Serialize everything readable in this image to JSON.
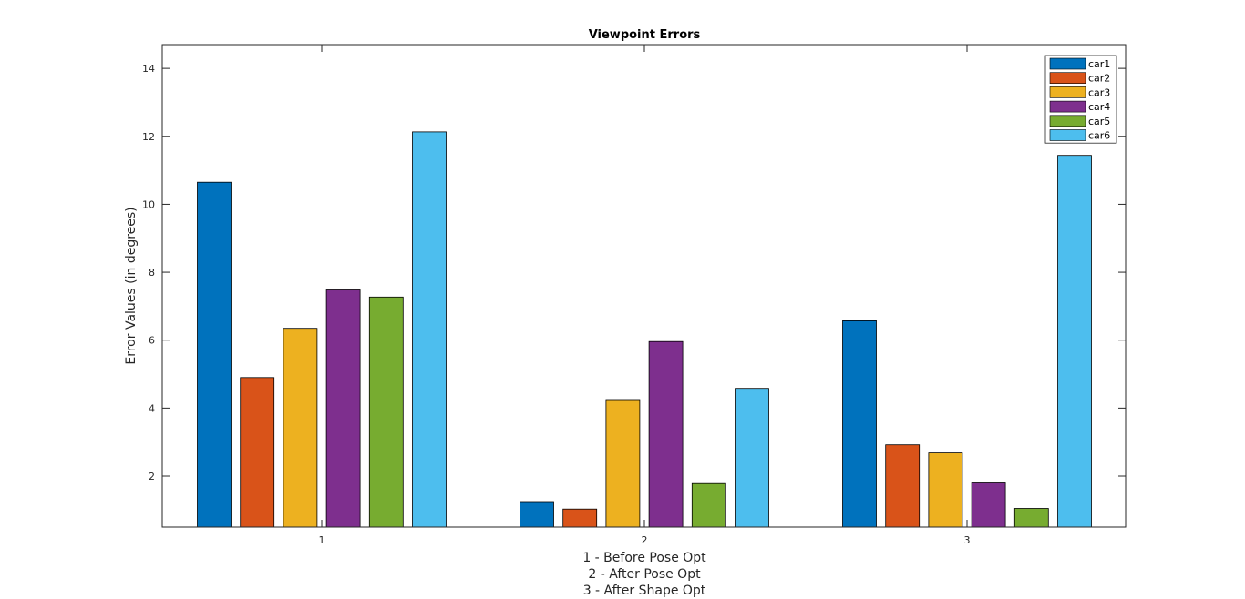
{
  "chart_data": {
    "type": "bar",
    "title": "Viewpoint Errors",
    "ylabel": "Error Values (in degrees)",
    "xlabel_lines": [
      "1 - Before Pose Opt",
      "2 - After Pose Opt",
      "3 - After Shape Opt"
    ],
    "categories": [
      "1",
      "2",
      "3"
    ],
    "ylim": [
      0.5,
      14.7
    ],
    "yticks": [
      2,
      4,
      6,
      8,
      10,
      12,
      14
    ],
    "grid": false,
    "legend_position": "top-right",
    "series": [
      {
        "name": "car1",
        "color": "#0072BD",
        "values": [
          10.65,
          1.25,
          6.57
        ]
      },
      {
        "name": "car2",
        "color": "#D95319",
        "values": [
          4.9,
          1.03,
          2.92
        ]
      },
      {
        "name": "car3",
        "color": "#EDB120",
        "values": [
          6.35,
          4.25,
          2.68
        ]
      },
      {
        "name": "car4",
        "color": "#7E2F8E",
        "values": [
          7.48,
          5.96,
          1.8
        ]
      },
      {
        "name": "car5",
        "color": "#77AC30",
        "values": [
          7.27,
          1.78,
          1.05
        ]
      },
      {
        "name": "car6",
        "color": "#4DBEEE",
        "values": [
          12.13,
          4.58,
          11.44
        ]
      }
    ]
  }
}
